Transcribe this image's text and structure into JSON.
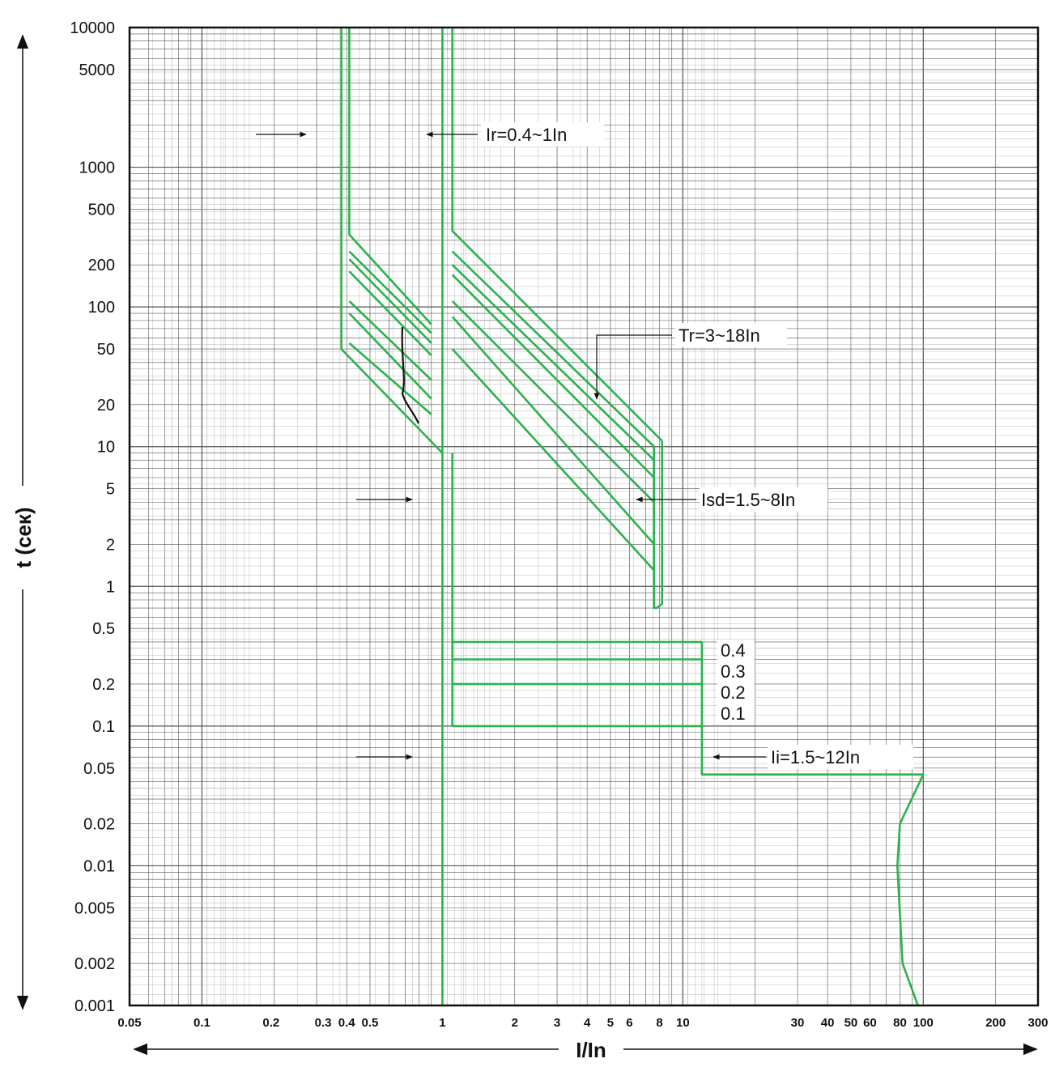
{
  "chart_data": {
    "type": "line",
    "xlabel": "I/In",
    "ylabel": "t (сек)",
    "xscale": "log",
    "yscale": "log",
    "xlim": [
      0.05,
      300
    ],
    "ylim": [
      0.001,
      10000
    ],
    "grid": true,
    "line_color": "#2bb24c",
    "x_tick_labels": [
      "0.05",
      "0.1",
      "0.2",
      "0.3",
      "0.4",
      "0.5",
      "1",
      "2",
      "3",
      "4",
      "5",
      "6",
      "8",
      "10",
      "30",
      "40",
      "50",
      "60",
      "80",
      "100",
      "200",
      "300"
    ],
    "y_tick_labels": [
      "10000",
      "5000",
      "1000",
      "500",
      "200",
      "100",
      "50",
      "20",
      "10",
      "5",
      "2",
      "1",
      "0.5",
      "0.2",
      "0.1",
      "0.05",
      "0.02",
      "0.01",
      "0.005",
      "0.002",
      "0.001"
    ],
    "annotations": [
      {
        "id": "ir",
        "text": "Ir=0.4~1In"
      },
      {
        "id": "tr",
        "text": "Tr=3~18In"
      },
      {
        "id": "isd",
        "text": "Isd=1.5~8In"
      },
      {
        "id": "ii",
        "text": "Ii=1.5~12In"
      }
    ],
    "short_time_delays": [
      "0.4",
      "0.3",
      "0.2",
      "0.1"
    ],
    "series": [
      {
        "values": [
          [
            0.38,
            10000
          ],
          [
            0.38,
            50
          ],
          [
            1,
            9
          ]
        ]
      },
      {
        "values": [
          [
            0.41,
            10000
          ],
          [
            0.41,
            330
          ],
          [
            0.9,
            75
          ]
        ]
      },
      {
        "values": [
          [
            0.41,
            250
          ],
          [
            0.9,
            65
          ]
        ]
      },
      {
        "values": [
          [
            0.41,
            220
          ],
          [
            0.9,
            55
          ]
        ]
      },
      {
        "values": [
          [
            0.41,
            180
          ],
          [
            0.9,
            45
          ]
        ]
      },
      {
        "values": [
          [
            0.41,
            110
          ],
          [
            0.9,
            30
          ]
        ]
      },
      {
        "values": [
          [
            0.41,
            90
          ],
          [
            0.9,
            22
          ]
        ]
      },
      {
        "values": [
          [
            0.41,
            55
          ],
          [
            0.9,
            17
          ]
        ]
      },
      {
        "values": [
          [
            1,
            10000
          ],
          [
            1,
            0.001
          ],
          [
            95,
            0.001
          ]
        ]
      },
      {
        "values": [
          [
            1.1,
            10000
          ],
          [
            1.1,
            350
          ],
          [
            8.2,
            11
          ]
        ]
      },
      {
        "values": [
          [
            1.1,
            250
          ],
          [
            7.6,
            10
          ]
        ]
      },
      {
        "values": [
          [
            1.1,
            200
          ],
          [
            7.6,
            8
          ]
        ]
      },
      {
        "values": [
          [
            1.1,
            170
          ],
          [
            7.6,
            6
          ]
        ]
      },
      {
        "values": [
          [
            1.1,
            110
          ],
          [
            7.6,
            4
          ]
        ]
      },
      {
        "values": [
          [
            1.1,
            85
          ],
          [
            7.6,
            2
          ]
        ]
      },
      {
        "values": [
          [
            1.1,
            50
          ],
          [
            7.6,
            1.3
          ]
        ]
      },
      {
        "values": [
          [
            7.6,
            10
          ],
          [
            7.6,
            0.7
          ],
          [
            7.8,
            0.7
          ],
          [
            8.2,
            0.75
          ],
          [
            8.2,
            11
          ]
        ]
      },
      {
        "values": [
          [
            1.1,
            9
          ],
          [
            1.1,
            0.1
          ]
        ]
      },
      {
        "values": [
          [
            1.1,
            0.4
          ],
          [
            12,
            0.4
          ]
        ]
      },
      {
        "values": [
          [
            1.1,
            0.3
          ],
          [
            12,
            0.3
          ]
        ]
      },
      {
        "values": [
          [
            1.1,
            0.2
          ],
          [
            12,
            0.2
          ]
        ]
      },
      {
        "values": [
          [
            1.1,
            0.1
          ],
          [
            12,
            0.1
          ]
        ]
      },
      {
        "values": [
          [
            12,
            0.4
          ],
          [
            12,
            0.045
          ],
          [
            100,
            0.045
          ],
          [
            80,
            0.02
          ],
          [
            78,
            0.01
          ],
          [
            82,
            0.002
          ],
          [
            95,
            0.001
          ]
        ]
      }
    ]
  }
}
